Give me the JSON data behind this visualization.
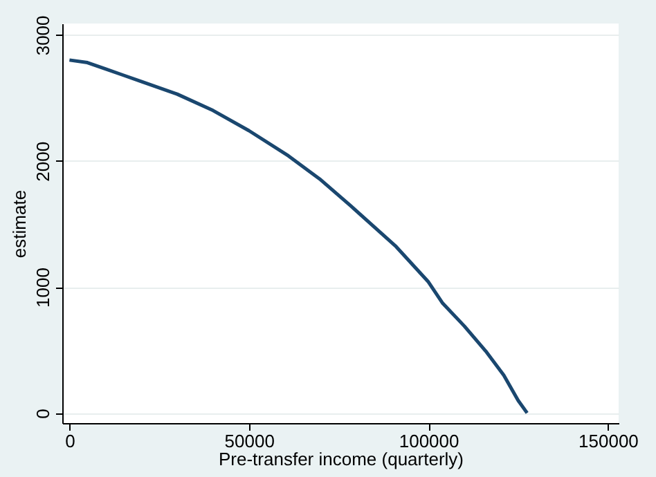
{
  "chart_data": {
    "type": "line",
    "xlabel": "Pre-transfer income (quarterly)",
    "ylabel": "estimate",
    "x": [
      0,
      5000,
      10000,
      15000,
      20000,
      30000,
      40000,
      50000,
      61000,
      70000,
      78500,
      91000,
      100000,
      104000,
      110000,
      116000,
      121000,
      125000,
      127500
    ],
    "series": [
      {
        "color": "#1a476f",
        "values": [
          2800,
          2780,
          2730,
          2680,
          2630,
          2530,
          2400,
          2240,
          2040,
          1850,
          1640,
          1320,
          1040,
          870,
          690,
          490,
          300,
          100,
          0
        ]
      }
    ],
    "xlim": [
      -2000,
      153000
    ],
    "xticks": [
      0,
      50000,
      100000,
      150000
    ],
    "ylim": [
      -80,
      3090
    ],
    "yticks": [
      0,
      1000,
      2000,
      3000
    ],
    "grid": "y",
    "marker": "none",
    "line_style": "solid"
  }
}
